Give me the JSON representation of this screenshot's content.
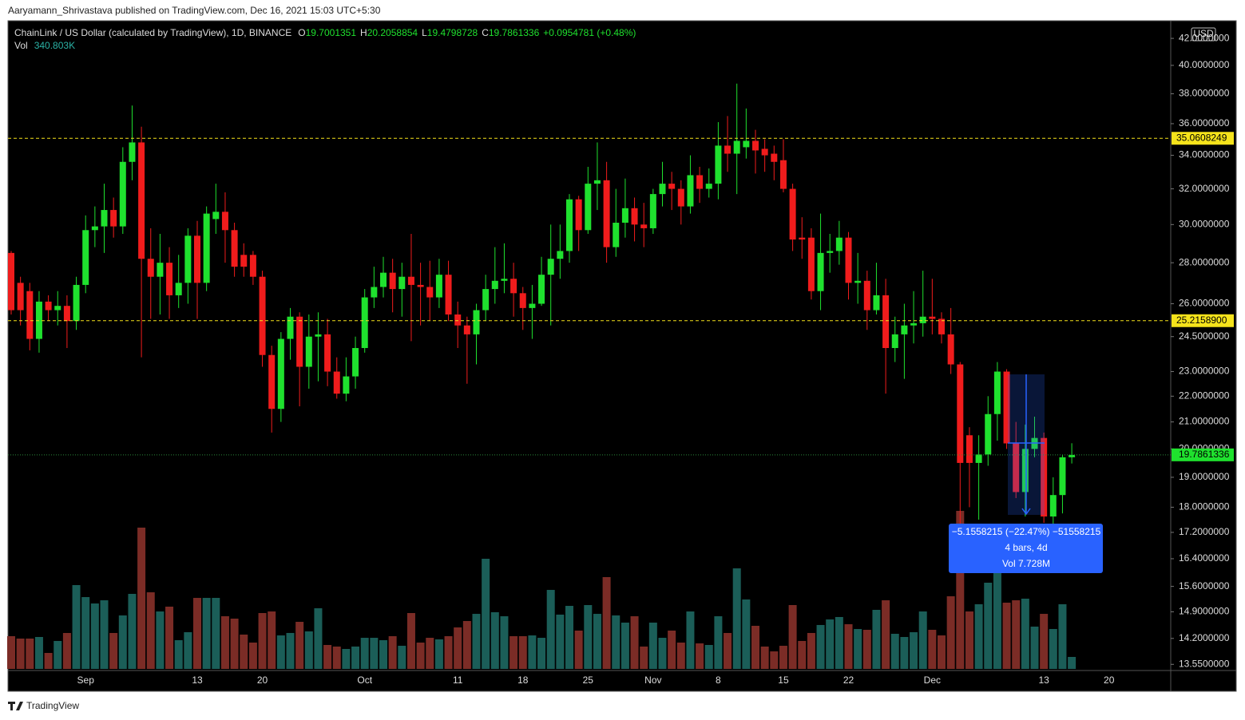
{
  "header": {
    "byline": "Aaryamann_Shrivastava published on TradingView.com, Dec 16, 2021 15:03 UTC+5:30",
    "ohlc": [
      {
        "key": "O",
        "value": "19.7001351"
      },
      {
        "key": "H",
        "value": "20.2058854"
      },
      {
        "key": "L",
        "value": "19.4798728"
      },
      {
        "key": "C",
        "value": "19.7861336"
      }
    ],
    "change": "+0.0954781 (+0.48%)",
    "vol_key": "Vol",
    "vol_value": "340.803K",
    "currency": "USD",
    "footer": "TradingView"
  },
  "annotations": {
    "measure_lines": [
      "−5.1558215 (−22.47%) −51558215",
      "4 bars, 4d",
      "Vol 7.728M"
    ]
  },
  "chart_data": {
    "type": "candlestick",
    "title": "ChainLink / US Dollar (calculated by TradingView), 1D, BINANCE",
    "categories": [
      null,
      null,
      null,
      null,
      null,
      null,
      null,
      null,
      "Sep",
      null,
      null,
      null,
      null,
      null,
      null,
      null,
      null,
      null,
      null,
      null,
      "13",
      null,
      null,
      null,
      null,
      null,
      null,
      "20",
      null,
      null,
      null,
      null,
      null,
      null,
      null,
      null,
      null,
      null,
      "Oct",
      null,
      null,
      null,
      null,
      null,
      null,
      null,
      null,
      null,
      "11",
      null,
      null,
      null,
      null,
      null,
      null,
      "18",
      null,
      null,
      null,
      null,
      null,
      null,
      "25",
      null,
      null,
      null,
      null,
      null,
      null,
      "Nov",
      null,
      null,
      null,
      null,
      null,
      null,
      "8",
      null,
      null,
      null,
      null,
      null,
      null,
      "15",
      null,
      null,
      null,
      null,
      null,
      null,
      "22",
      null,
      null,
      null,
      null,
      null,
      null,
      null,
      null,
      "Dec",
      null,
      null,
      null,
      null,
      null,
      null,
      null,
      null,
      null,
      null,
      null,
      "13",
      null,
      null,
      null,
      null,
      null,
      null,
      "20"
    ],
    "open": [
      28.5,
      27,
      26.6,
      24.4,
      26.1,
      25.7,
      25.9,
      25.2,
      26.9,
      29.7,
      29.9,
      30.8,
      29.9,
      33.6,
      34.8,
      28.2,
      27.3,
      28,
      26.4,
      27,
      29.4,
      27,
      30.3,
      30.7,
      29.7,
      28.4,
      28.4,
      27.3,
      23.7,
      21.5,
      24.4,
      25.4,
      23.2,
      24.5,
      24.6,
      23,
      22.1,
      22.8,
      24,
      26.3,
      26.8,
      27.5,
      26.7,
      27.3,
      26.9,
      26.8,
      26.3,
      27.4,
      25.5,
      25,
      24.6,
      25.7,
      26.7,
      27.1,
      27.2,
      26.5,
      25.8,
      26,
      27.4,
      28.2,
      28.6,
      31.4,
      29.7,
      32.3,
      32.5,
      28.8,
      30.1,
      30.9,
      30,
      29.8,
      31.7,
      32.3,
      32,
      31,
      32.8,
      32,
      32.3,
      34.6,
      34.1,
      34.5,
      34.9,
      34.4,
      34.1,
      33.7,
      32,
      29.3,
      29.3,
      26.6,
      28.5,
      28.6,
      29.3,
      27,
      27.1,
      25.7,
      26.4,
      24,
      24.6,
      25,
      25.1,
      25.4,
      25.3,
      24.6,
      23.3,
      20.5,
      19.5,
      19.8,
      21.3,
      23,
      20.2,
      18.5,
      20,
      20.4,
      17.7,
      18.4,
      19.7001351,
      null,
      null,
      null,
      null
    ],
    "high": [
      28.6,
      27.3,
      27,
      26.6,
      26.4,
      26.6,
      26.4,
      27.3,
      30.5,
      31,
      32.3,
      31.5,
      34.5,
      37.2,
      35.8,
      29.8,
      29.5,
      28.8,
      28.4,
      29.8,
      30.2,
      31,
      32.3,
      31.8,
      30.1,
      29,
      28.6,
      27.6,
      24.1,
      24.7,
      25.8,
      25.6,
      25.5,
      25.6,
      25.3,
      23.6,
      23.6,
      24.5,
      26.7,
      27.8,
      28.3,
      28.2,
      28,
      29.5,
      28,
      28.1,
      28.2,
      28.1,
      26.1,
      25.4,
      26,
      27.4,
      28.8,
      29,
      28,
      26.8,
      26.9,
      28.3,
      30,
      30,
      31.7,
      31.6,
      33.3,
      34.8,
      33.6,
      32,
      32.6,
      31.5,
      31.2,
      32,
      33.6,
      33,
      32.5,
      34,
      33.3,
      33.2,
      36.1,
      36.5,
      38.7,
      37,
      35.6,
      35,
      34.6,
      35,
      32.3,
      30.4,
      29.8,
      30.6,
      29.5,
      30.2,
      29.6,
      28.5,
      27.6,
      28,
      27.2,
      25.4,
      26,
      26.6,
      27.6,
      27.2,
      25.6,
      25.8,
      23.4,
      20.8,
      20.5,
      22,
      23.4,
      23.1,
      21,
      20.9,
      21.2,
      20.6,
      19,
      19.8,
      20.2058854,
      null,
      null,
      null,
      null
    ],
    "low": [
      25.5,
      25,
      23.9,
      23.8,
      25.2,
      25,
      24,
      24.8,
      26.5,
      28.8,
      28.5,
      29.3,
      29.5,
      32.5,
      23.6,
      25.3,
      25.5,
      25.3,
      25.8,
      26,
      25.3,
      26.6,
      29.5,
      28,
      27.3,
      27.3,
      26.9,
      23.2,
      20.6,
      21,
      23.5,
      21.6,
      22.3,
      22.6,
      22.4,
      21.9,
      21.8,
      22.3,
      23.8,
      25.8,
      26.3,
      25.6,
      25.4,
      24.3,
      25,
      25.2,
      25.8,
      25.2,
      24,
      22.5,
      23.3,
      25.2,
      26,
      26.5,
      25.4,
      24.8,
      24.4,
      25.9,
      25,
      27.2,
      28,
      28.6,
      29.5,
      30.8,
      28,
      28.3,
      29.3,
      29.1,
      28.8,
      29.5,
      31,
      30.8,
      30,
      30.6,
      31.2,
      31.5,
      31.4,
      33,
      31.7,
      33.8,
      32.9,
      33,
      32.5,
      31.8,
      28.6,
      28.2,
      26.2,
      25.7,
      27.5,
      27.9,
      26.2,
      26,
      24.8,
      25.5,
      22.1,
      23.4,
      22.7,
      24.2,
      24.5,
      24.6,
      24.2,
      22.9,
      17,
      18,
      17.6,
      19.4,
      20.3,
      20,
      18.3,
      17.7,
      19.7,
      17.5,
      17.3,
      17.8,
      19.4798728,
      null,
      null,
      null,
      null
    ],
    "close": [
      25.7,
      25.7,
      24.4,
      26.1,
      25.7,
      25.9,
      25.2,
      26.9,
      29.7,
      29.9,
      30.8,
      29.9,
      33.6,
      34.8,
      28.2,
      27.3,
      28,
      26.4,
      27,
      29.4,
      27,
      30.6,
      30.7,
      29.7,
      27.8,
      27.8,
      27.3,
      23.7,
      21.5,
      24.4,
      25.4,
      23.2,
      24.5,
      24.6,
      23,
      22.1,
      22.8,
      24,
      26.3,
      26.8,
      27.5,
      26.7,
      27.3,
      26.9,
      26.8,
      26.3,
      27.4,
      25.5,
      25,
      24.6,
      25.7,
      26.7,
      27.1,
      27.2,
      26.5,
      25.8,
      26,
      27.4,
      28.2,
      28.6,
      31.4,
      29.7,
      32.3,
      32.5,
      28.8,
      30.1,
      30.9,
      30,
      29.8,
      31.7,
      32.3,
      32,
      31,
      32.8,
      32,
      32.3,
      34.6,
      34.1,
      34.9,
      34.9,
      34.3,
      34,
      33.6,
      32,
      29.2,
      29.2,
      26.6,
      28.5,
      28.6,
      29.3,
      27,
      27.1,
      25.7,
      26.4,
      24,
      24.6,
      25,
      25.1,
      25.4,
      25.3,
      24.6,
      23.3,
      19.5,
      19.5,
      19.8,
      21.3,
      23,
      20.2,
      18.5,
      20,
      20.4,
      17.7,
      18.4,
      19.7,
      19.7861336,
      null,
      null,
      null,
      null
    ],
    "volume": [
      931,
      863,
      863,
      908,
      454,
      795,
      1022,
      2384,
      2043,
      1861,
      1952,
      1022,
      1521,
      2134,
      4018,
      2179,
      1634,
      1771,
      817,
      1044,
      2020,
      2020,
      2020,
      1498,
      1430,
      976,
      749,
      1589,
      1634,
      953,
      1022,
      1339,
      1067,
      1725,
      681,
      636,
      568,
      636,
      885,
      885,
      817,
      931,
      658,
      1589,
      749,
      885,
      840,
      931,
      1180,
      1362,
      1566,
      3133,
      1612,
      1498,
      931,
      931,
      953,
      885,
      2247,
      1544,
      1793,
      1090,
      1816,
      1566,
      2611,
      1521,
      1317,
      1498,
      636,
      1317,
      885,
      1090,
      749,
      1634,
      726,
      681,
      1498,
      1022,
      2860,
      1975,
      1226,
      636,
      499,
      658,
      1816,
      795,
      1022,
      1249,
      1407,
      1476,
      1271,
      1135,
      1112,
      1680,
      1952,
      999,
      908,
      1044,
      1634,
      1112,
      953,
      2066,
      4495,
      1634,
      1839,
      2452,
      3133,
      1884,
      1952,
      1998,
      1203,
      1566,
      1135,
      1839,
      340.803,
      null,
      null,
      null,
      null
    ],
    "up_color": "#1fe12e",
    "down_color": "#f01c1c",
    "volume_up_color": "#1b5e58",
    "volume_down_color": "#7b2c26",
    "log_scale": true,
    "grid": false,
    "ylim": [
      13.4,
      42.8
    ],
    "yticks": [
      {
        "value": 13.55,
        "label": "13.5500000"
      },
      {
        "value": 14.2,
        "label": "14.2000000"
      },
      {
        "value": 14.9,
        "label": "14.9000000"
      },
      {
        "value": 15.6,
        "label": "15.6000000"
      },
      {
        "value": 16.4,
        "label": "16.4000000"
      },
      {
        "value": 17.2,
        "label": "17.2000000"
      },
      {
        "value": 18,
        "label": "18.0000000"
      },
      {
        "value": 19,
        "label": "19.0000000"
      },
      {
        "value": 20,
        "label": "20.0000000"
      },
      {
        "value": 21,
        "label": "21.0000000"
      },
      {
        "value": 22,
        "label": "22.0000000"
      },
      {
        "value": 23,
        "label": "23.0000000"
      },
      {
        "value": 24.5,
        "label": "24.5000000"
      },
      {
        "value": 26,
        "label": "26.0000000"
      },
      {
        "value": 28,
        "label": "28.0000000"
      },
      {
        "value": 30,
        "label": "30.0000000"
      },
      {
        "value": 32,
        "label": "32.0000000"
      },
      {
        "value": 34,
        "label": "34.0000000"
      },
      {
        "value": 36,
        "label": "36.0000000"
      },
      {
        "value": 38,
        "label": "38.0000000"
      },
      {
        "value": 40,
        "label": "40.0000000"
      },
      {
        "value": 42,
        "label": "42.0000000"
      }
    ],
    "levels": [
      35.0608249,
      {
        "value": 25.21589,
        "label": "25.2158900"
      }
    ],
    "level_color": "#f5e31b",
    "last_price": 19.7861336
  }
}
